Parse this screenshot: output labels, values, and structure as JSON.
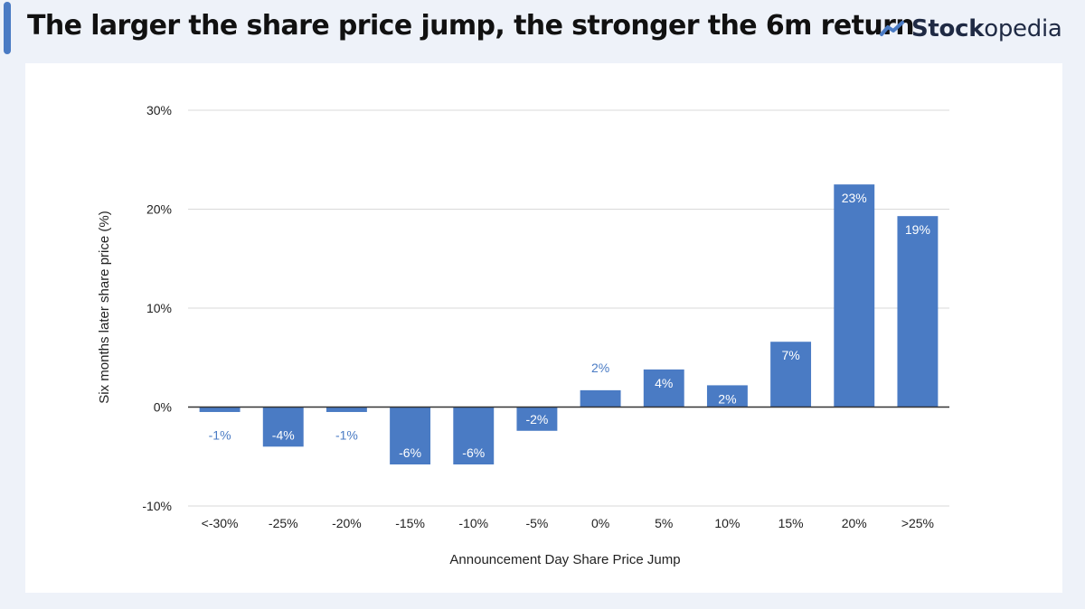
{
  "header": {
    "title": "The larger the share price jump, the stronger the 6m return",
    "logo": {
      "icon": "stockopedia-chart-icon",
      "text_bold": "Stock",
      "text_regular": "opedia"
    }
  },
  "colors": {
    "background": "#eef2f9",
    "accent": "#4a7bc4",
    "bar": "#4a7bc4",
    "label_outside": "#4a7bc4",
    "label_inside": "#ffffff",
    "grid": "#d9d9d9",
    "zero_line": "#333333"
  },
  "chart_data": {
    "type": "bar",
    "title": "",
    "xlabel": "Announcement Day Share Price Jump",
    "ylabel": "Six months later share price (%)",
    "categories": [
      "<-30%",
      "-25%",
      "-20%",
      "-15%",
      "-10%",
      "-5%",
      "0%",
      "5%",
      "10%",
      "15%",
      "20%",
      ">25%"
    ],
    "values": [
      -0.5,
      -4,
      -0.5,
      -5.8,
      -5.8,
      -2.4,
      1.7,
      3.8,
      2.2,
      6.6,
      22.5,
      19.3
    ],
    "data_labels": [
      "-1%",
      "-4%",
      "-1%",
      "-6%",
      "-6%",
      "-2%",
      "2%",
      "4%",
      "2%",
      "7%",
      "23%",
      "19%"
    ],
    "label_inside": [
      false,
      true,
      false,
      true,
      true,
      true,
      false,
      true,
      true,
      true,
      true,
      true
    ],
    "ylim": [
      -10,
      30
    ],
    "yticks": [
      -10,
      0,
      10,
      20,
      30
    ],
    "ytick_labels": [
      "-10%",
      "0%",
      "10%",
      "20%",
      "30%"
    ],
    "grid": true,
    "legend": "none"
  }
}
